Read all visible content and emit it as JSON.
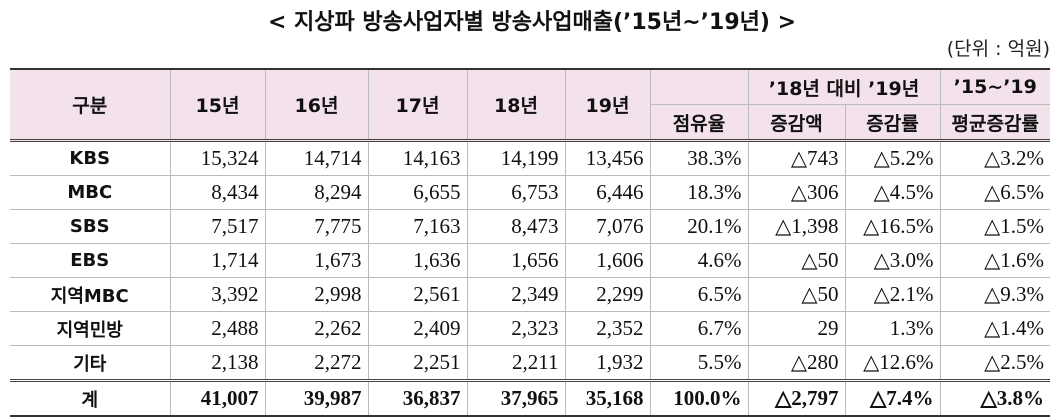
{
  "title": "< 지상파 방송사업자별 방송사업매출(’15년~’19년) >",
  "unit": "(단위 : 억원)",
  "header": {
    "category": "구분",
    "years": [
      "15년",
      "16년",
      "17년",
      "18년",
      "19년"
    ],
    "share": "점유율",
    "compare_group": "’18년 대비 ’19년",
    "change_amount": "증감액",
    "change_rate": "증감률",
    "avg_group": "’15~’19",
    "avg_rate": "평균증감률"
  },
  "table": {
    "rows": [
      [
        "KBS",
        "15,324",
        "14,714",
        "14,163",
        "14,199",
        "13,456",
        "38.3%",
        "△743",
        "△5.2%",
        "△3.2%"
      ],
      [
        "MBC",
        "8,434",
        "8,294",
        "6,655",
        "6,753",
        "6,446",
        "18.3%",
        "△306",
        "△4.5%",
        "△6.5%"
      ],
      [
        "SBS",
        "7,517",
        "7,775",
        "7,163",
        "8,473",
        "7,076",
        "20.1%",
        "△1,398",
        "△16.5%",
        "△1.5%"
      ],
      [
        "EBS",
        "1,714",
        "1,673",
        "1,636",
        "1,656",
        "1,606",
        "4.6%",
        "△50",
        "△3.0%",
        "△1.6%"
      ],
      [
        "지역MBC",
        "3,392",
        "2,998",
        "2,561",
        "2,349",
        "2,299",
        "6.5%",
        "△50",
        "△2.1%",
        "△9.3%"
      ],
      [
        "지역민방",
        "2,488",
        "2,262",
        "2,409",
        "2,323",
        "2,352",
        "6.7%",
        "29",
        "1.3%",
        "△1.4%"
      ],
      [
        "기타",
        "2,138",
        "2,272",
        "2,251",
        "2,211",
        "1,932",
        "5.5%",
        "△280",
        "△12.6%",
        "△2.5%"
      ],
      [
        "계",
        "41,007",
        "39,987",
        "36,837",
        "37,965",
        "35,168",
        "100.0%",
        "△2,797",
        "△7.4%",
        "△3.8%"
      ]
    ]
  }
}
